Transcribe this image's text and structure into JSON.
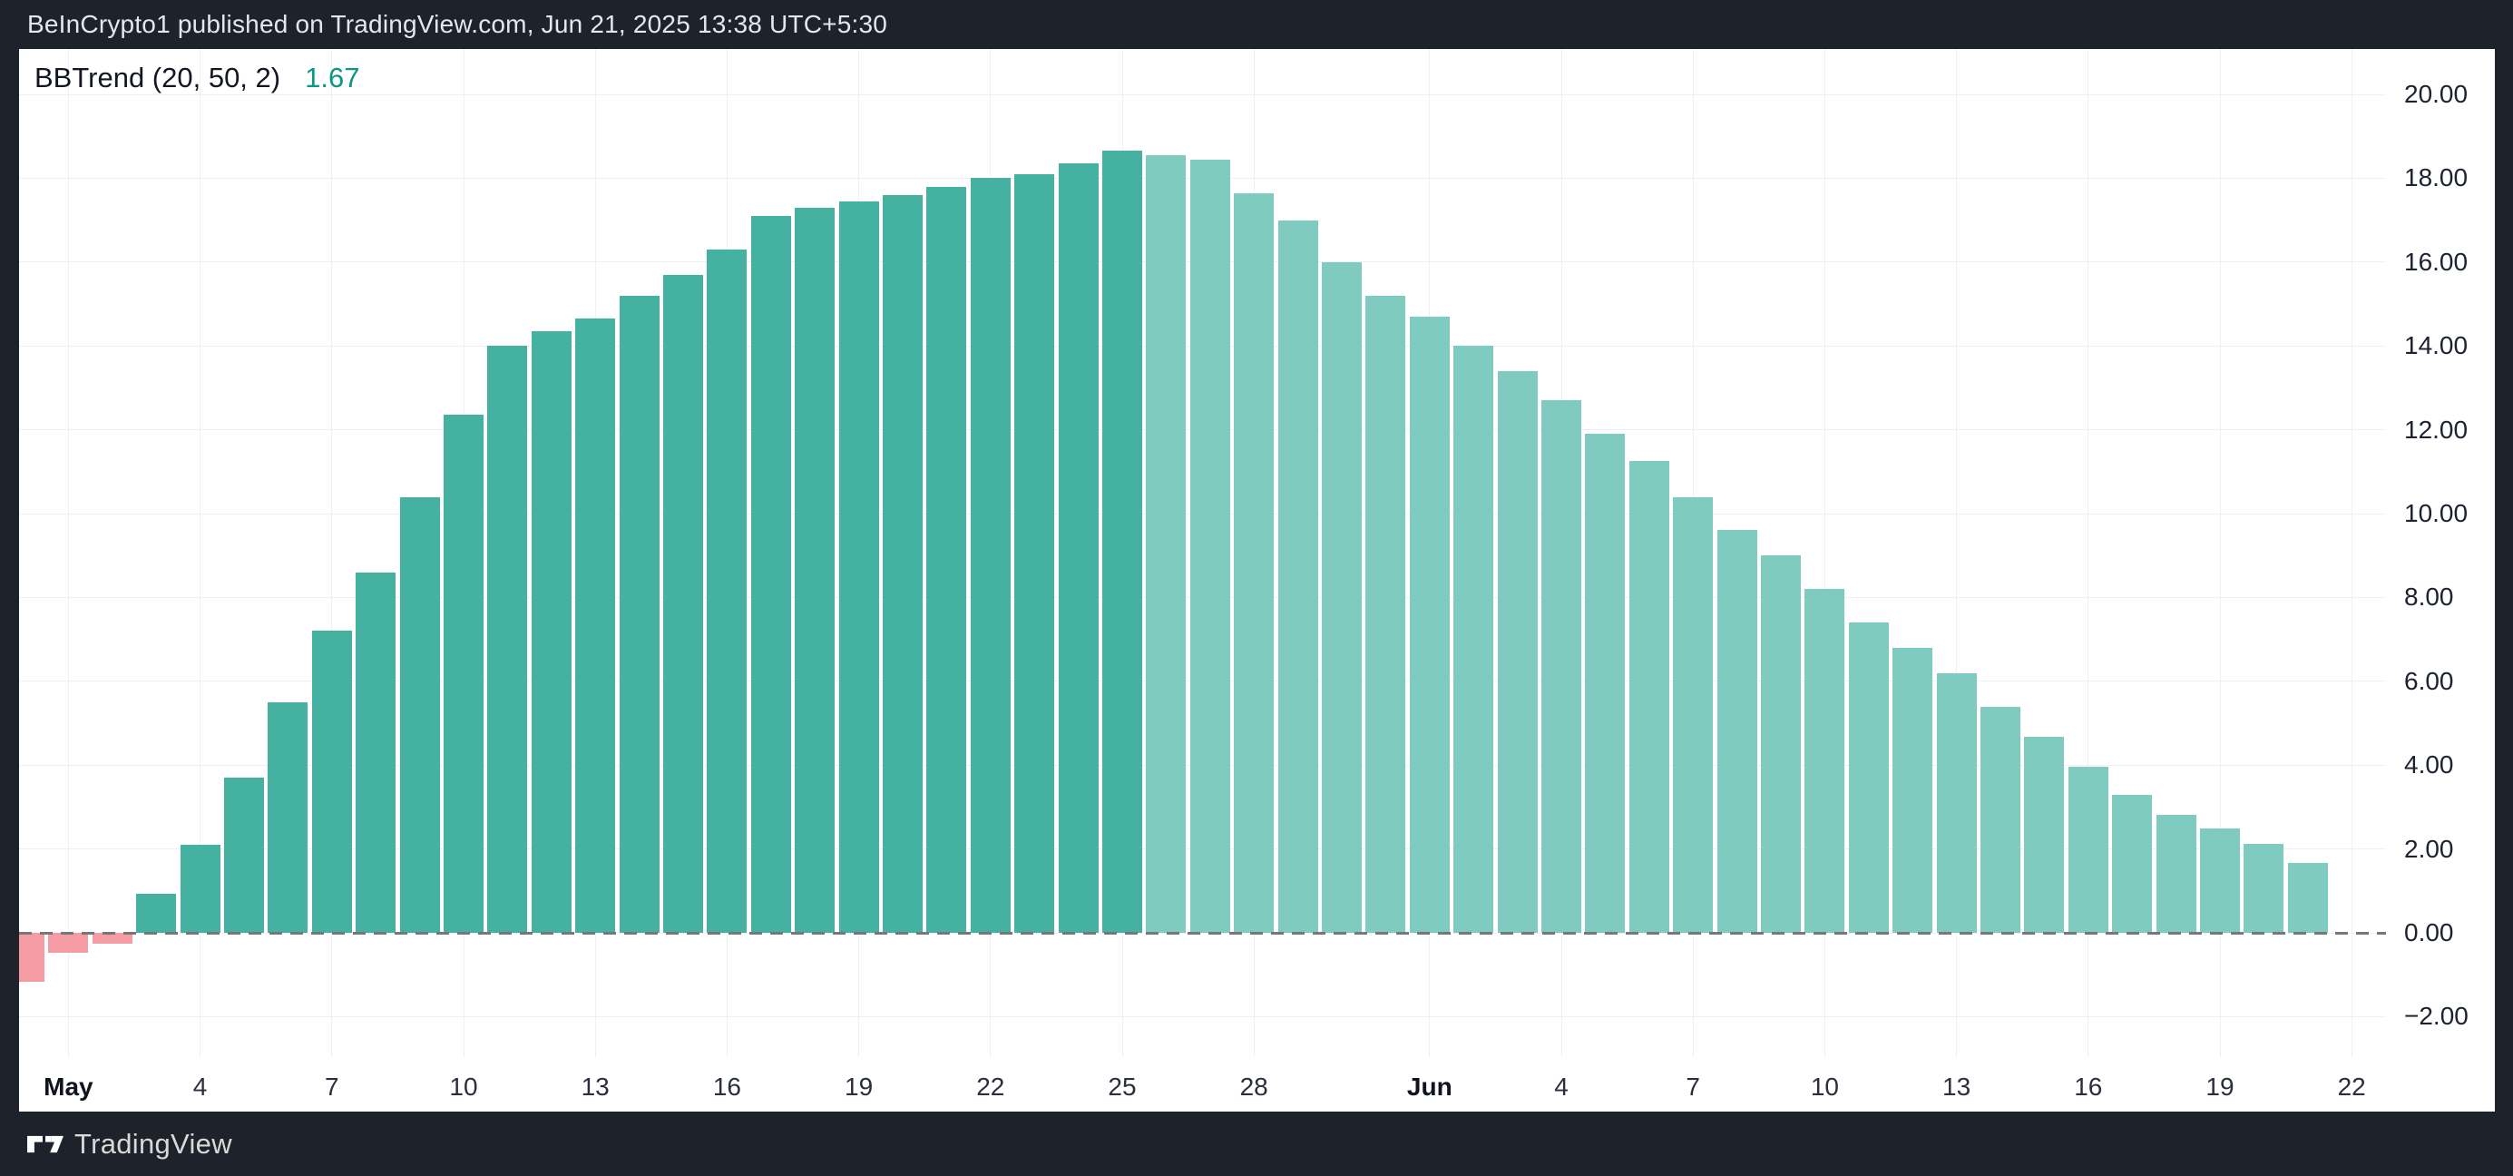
{
  "header": {
    "text": "BeInCrypto1 published on TradingView.com, Jun 21, 2025 13:38 UTC+5:30"
  },
  "panel": {
    "legend": {
      "indicator_label": "BBTrend (20, 50, 2)",
      "value": "1.67"
    }
  },
  "footer": {
    "brand": "TradingView",
    "logo_icon": "tradingview-logo"
  },
  "colors": {
    "page_background": "#1e222a",
    "panel_background": "#ffffff",
    "bar_positive_rising": "#45b2a1",
    "bar_positive_falling": "#80cbc0",
    "bar_negative": "#f49ba3",
    "zero_line": "#75777a",
    "gridline": "#eef0f3",
    "legend_value": "#089981",
    "header_text": "#e4e7ee",
    "tick_text": "#1c2230",
    "footer_text": "#d9d9d9"
  },
  "chart_data": {
    "type": "bar",
    "title": "BBTrend (20, 50, 2)",
    "current_value": 1.67,
    "xlabel": "",
    "ylabel": "",
    "ylim": [
      -2.97,
      21.08
    ],
    "grid": true,
    "zero_line_dashed": true,
    "legend_position": "top-left",
    "color_rule": "pink = negative value; dark teal = positive and rising; light teal = positive and falling",
    "categories": [
      "Apr 30",
      "May 1",
      "May 2",
      "May 3",
      "May 4",
      "May 5",
      "May 6",
      "May 7",
      "May 8",
      "May 9",
      "May 10",
      "May 11",
      "May 12",
      "May 13",
      "May 14",
      "May 15",
      "May 16",
      "May 17",
      "May 18",
      "May 19",
      "May 20",
      "May 21",
      "May 22",
      "May 23",
      "May 24",
      "May 25",
      "May 26",
      "May 27",
      "May 28",
      "May 29",
      "May 30",
      "May 31",
      "Jun 1",
      "Jun 2",
      "Jun 3",
      "Jun 4",
      "Jun 5",
      "Jun 6",
      "Jun 7",
      "Jun 8",
      "Jun 9",
      "Jun 10",
      "Jun 11",
      "Jun 12",
      "Jun 13",
      "Jun 14",
      "Jun 15",
      "Jun 16",
      "Jun 17",
      "Jun 18",
      "Jun 19",
      "Jun 20",
      "Jun 21"
    ],
    "values": [
      -1.17,
      -0.48,
      -0.25,
      0.93,
      2.1,
      3.7,
      5.5,
      7.2,
      8.6,
      10.4,
      12.35,
      14.0,
      14.35,
      14.65,
      15.2,
      15.7,
      16.3,
      17.1,
      17.3,
      17.45,
      17.6,
      17.8,
      18.0,
      18.1,
      18.35,
      18.65,
      18.55,
      18.45,
      17.65,
      17.0,
      16.0,
      15.2,
      14.7,
      14.0,
      13.4,
      12.7,
      11.9,
      11.25,
      10.4,
      9.6,
      9.0,
      8.2,
      7.4,
      6.8,
      6.2,
      5.4,
      4.67,
      3.96,
      3.3,
      2.82,
      2.5,
      2.12,
      1.67
    ],
    "y_ticks": [
      {
        "label": "20.00",
        "value": 20
      },
      {
        "label": "18.00",
        "value": 18
      },
      {
        "label": "16.00",
        "value": 16
      },
      {
        "label": "14.00",
        "value": 14
      },
      {
        "label": "12.00",
        "value": 12
      },
      {
        "label": "10.00",
        "value": 10
      },
      {
        "label": "8.00",
        "value": 8
      },
      {
        "label": "6.00",
        "value": 6
      },
      {
        "label": "4.00",
        "value": 4
      },
      {
        "label": "2.00",
        "value": 2
      },
      {
        "label": "0.00",
        "value": 0
      },
      {
        "label": "−2.00",
        "value": -2
      }
    ],
    "x_ticks": [
      {
        "label": "May",
        "index": 1,
        "bold": true
      },
      {
        "label": "4",
        "index": 4,
        "bold": false
      },
      {
        "label": "7",
        "index": 7,
        "bold": false
      },
      {
        "label": "10",
        "index": 10,
        "bold": false
      },
      {
        "label": "13",
        "index": 13,
        "bold": false
      },
      {
        "label": "16",
        "index": 16,
        "bold": false
      },
      {
        "label": "19",
        "index": 19,
        "bold": false
      },
      {
        "label": "22",
        "index": 22,
        "bold": false
      },
      {
        "label": "25",
        "index": 25,
        "bold": false
      },
      {
        "label": "28",
        "index": 28,
        "bold": false
      },
      {
        "label": "Jun",
        "index": 32,
        "bold": true
      },
      {
        "label": "4",
        "index": 35,
        "bold": false
      },
      {
        "label": "7",
        "index": 38,
        "bold": false
      },
      {
        "label": "10",
        "index": 41,
        "bold": false
      },
      {
        "label": "13",
        "index": 44,
        "bold": false
      },
      {
        "label": "16",
        "index": 47,
        "bold": false
      },
      {
        "label": "19",
        "index": 50,
        "bold": false
      },
      {
        "label": "22",
        "index": 53,
        "bold": false
      }
    ]
  }
}
